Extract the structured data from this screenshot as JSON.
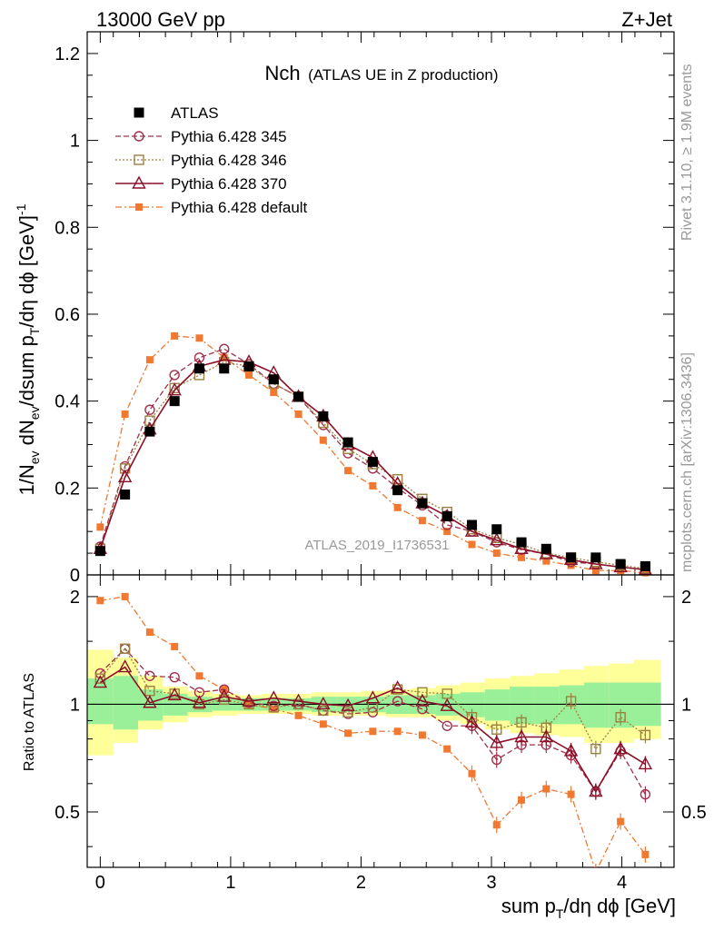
{
  "header": {
    "energy": "13000 GeV pp",
    "process": "Z+Jet"
  },
  "side_labels": {
    "rivet": "Rivet 3.1.10, ≥ 1.9M events",
    "mcplots": "mcplots.cern.ch [arXiv:1306.3436]"
  },
  "chart_data": {
    "type": "line",
    "title_main": "Nch",
    "title_sub": "(ATLAS UE in Z production)",
    "watermark": "ATLAS_2019_I1736531",
    "xlabel": "sum p_T/dη dϕ [GeV]",
    "ylabel_top": "1/N_ev dN_ev/dsum p_T/dη dϕ [GeV]^-1",
    "ylabel_ratio": "Ratio to ATLAS",
    "xlim": [
      -0.1,
      4.4
    ],
    "ylim_top": [
      0,
      1.25
    ],
    "ylim_ratio": [
      0.35,
      2.3
    ],
    "x_ticks": [
      {
        "v": 0,
        "label": "0"
      },
      {
        "v": 1,
        "label": "1"
      },
      {
        "v": 2,
        "label": "2"
      },
      {
        "v": 3,
        "label": "3"
      },
      {
        "v": 4,
        "label": "4"
      }
    ],
    "y_ticks_top": [
      {
        "v": 0,
        "label": "0"
      },
      {
        "v": 0.2,
        "label": "0.2"
      },
      {
        "v": 0.4,
        "label": "0.4"
      },
      {
        "v": 0.6,
        "label": "0.6"
      },
      {
        "v": 0.8,
        "label": "0.8"
      },
      {
        "v": 1.0,
        "label": "1"
      },
      {
        "v": 1.2,
        "label": "1.2"
      }
    ],
    "y_ticks_ratio": [
      {
        "v": 0.5,
        "label": "0.5"
      },
      {
        "v": 1,
        "label": "1"
      },
      {
        "v": 2,
        "label": "2"
      }
    ],
    "x": [
      0.0,
      0.19,
      0.38,
      0.57,
      0.76,
      0.95,
      1.14,
      1.33,
      1.52,
      1.71,
      1.9,
      2.09,
      2.28,
      2.47,
      2.66,
      2.85,
      3.04,
      3.23,
      3.42,
      3.61,
      3.8,
      3.99,
      4.18
    ],
    "bin_edges": [
      -0.1,
      0.1,
      0.29,
      0.48,
      0.67,
      0.86,
      1.05,
      1.24,
      1.43,
      1.62,
      1.81,
      2.0,
      2.19,
      2.38,
      2.57,
      2.76,
      2.95,
      3.14,
      3.33,
      3.52,
      3.71,
      3.9,
      4.09,
      4.3
    ],
    "band_inner": [
      [
        0.88,
        1.18
      ],
      [
        0.85,
        1.2
      ],
      [
        0.9,
        1.1
      ],
      [
        0.93,
        1.07
      ],
      [
        0.95,
        1.05
      ],
      [
        0.96,
        1.04
      ],
      [
        0.96,
        1.04
      ],
      [
        0.96,
        1.04
      ],
      [
        0.96,
        1.04
      ],
      [
        0.95,
        1.05
      ],
      [
        0.95,
        1.05
      ],
      [
        0.95,
        1.05
      ],
      [
        0.94,
        1.06
      ],
      [
        0.94,
        1.06
      ],
      [
        0.93,
        1.07
      ],
      [
        0.92,
        1.08
      ],
      [
        0.9,
        1.1
      ],
      [
        0.88,
        1.12
      ],
      [
        0.88,
        1.12
      ],
      [
        0.88,
        1.13
      ],
      [
        0.86,
        1.15
      ],
      [
        0.86,
        1.15
      ],
      [
        0.87,
        1.15
      ]
    ],
    "band_outer": [
      [
        0.72,
        1.42
      ],
      [
        0.78,
        1.35
      ],
      [
        0.85,
        1.2
      ],
      [
        0.89,
        1.12
      ],
      [
        0.92,
        1.09
      ],
      [
        0.93,
        1.07
      ],
      [
        0.94,
        1.06
      ],
      [
        0.94,
        1.07
      ],
      [
        0.94,
        1.07
      ],
      [
        0.93,
        1.08
      ],
      [
        0.93,
        1.08
      ],
      [
        0.93,
        1.09
      ],
      [
        0.92,
        1.1
      ],
      [
        0.92,
        1.11
      ],
      [
        0.9,
        1.13
      ],
      [
        0.88,
        1.15
      ],
      [
        0.85,
        1.18
      ],
      [
        0.83,
        1.2
      ],
      [
        0.82,
        1.22
      ],
      [
        0.81,
        1.25
      ],
      [
        0.78,
        1.28
      ],
      [
        0.78,
        1.3
      ],
      [
        0.8,
        1.33
      ]
    ],
    "series": [
      {
        "name": "ATLAS",
        "color": "#000000",
        "marker": "square-filled",
        "line": "none",
        "values": [
          0.055,
          0.185,
          0.33,
          0.4,
          0.475,
          0.475,
          0.48,
          0.45,
          0.41,
          0.365,
          0.305,
          0.26,
          0.195,
          0.165,
          0.135,
          0.115,
          0.105,
          0.075,
          0.06,
          0.04,
          0.04,
          0.025,
          0.02
        ],
        "ratio": [
          1,
          1,
          1,
          1,
          1,
          1,
          1,
          1,
          1,
          1,
          1,
          1,
          1,
          1,
          1,
          1,
          1,
          1,
          1,
          1,
          1,
          1,
          1
        ]
      },
      {
        "name": "Pythia 6.428 345",
        "color": "#a0304c",
        "marker": "circle-open",
        "line": "dashed",
        "values": [
          0.065,
          0.25,
          0.38,
          0.46,
          0.5,
          0.52,
          0.485,
          0.44,
          0.41,
          0.345,
          0.28,
          0.245,
          0.2,
          0.16,
          0.115,
          0.1,
          0.075,
          0.058,
          0.048,
          0.03,
          0.025,
          0.018,
          0.012
        ],
        "ratio": [
          1.22,
          1.43,
          1.2,
          1.19,
          1.08,
          1.1,
          1.01,
          0.99,
          1.0,
          0.96,
          0.94,
          0.95,
          1.02,
          0.97,
          0.87,
          0.87,
          0.7,
          0.77,
          0.77,
          0.72,
          0.57,
          0.74,
          0.56
        ]
      },
      {
        "name": "Pythia 6.428 346",
        "color": "#9c8040",
        "marker": "square-open",
        "line": "dotted",
        "values": [
          0.06,
          0.245,
          0.355,
          0.43,
          0.46,
          0.49,
          0.48,
          0.44,
          0.41,
          0.35,
          0.29,
          0.255,
          0.22,
          0.175,
          0.145,
          0.105,
          0.085,
          0.07,
          0.05,
          0.04,
          0.03,
          0.022,
          0.015
        ],
        "ratio": [
          1.18,
          1.43,
          1.09,
          1.07,
          1.0,
          1.03,
          1.0,
          0.98,
          1.0,
          0.96,
          0.95,
          0.98,
          1.1,
          1.08,
          1.07,
          0.92,
          0.85,
          0.89,
          0.86,
          1.02,
          0.75,
          0.92,
          0.82
        ]
      },
      {
        "name": "Pythia 6.428 370",
        "color": "#8a1028",
        "marker": "triangle-open",
        "line": "solid",
        "values": [
          0.06,
          0.225,
          0.335,
          0.425,
          0.48,
          0.495,
          0.49,
          0.465,
          0.41,
          0.365,
          0.3,
          0.27,
          0.21,
          0.165,
          0.135,
          0.1,
          0.08,
          0.06,
          0.048,
          0.035,
          0.025,
          0.018,
          0.012
        ],
        "ratio": [
          1.15,
          1.27,
          1.01,
          1.06,
          1.01,
          1.05,
          1.02,
          1.04,
          1.02,
          1.0,
          0.99,
          1.04,
          1.11,
          1.02,
          0.99,
          0.89,
          0.78,
          0.81,
          0.81,
          0.74,
          0.57,
          0.75,
          0.68
        ]
      },
      {
        "name": "Pythia 6.428 default",
        "color": "#f07830",
        "marker": "square-filled-small",
        "line": "dashdot",
        "values": [
          0.11,
          0.37,
          0.495,
          0.55,
          0.545,
          0.5,
          0.46,
          0.42,
          0.37,
          0.31,
          0.24,
          0.205,
          0.155,
          0.125,
          0.1,
          0.07,
          0.05,
          0.04,
          0.032,
          0.022,
          0.01,
          0.01,
          0.005
        ],
        "ratio": [
          1.95,
          2.0,
          1.59,
          1.45,
          1.2,
          1.1,
          1.0,
          0.97,
          0.93,
          0.88,
          0.83,
          0.84,
          0.84,
          0.82,
          0.75,
          0.64,
          0.46,
          0.54,
          0.58,
          0.56,
          0.34,
          0.47,
          0.38
        ]
      }
    ]
  }
}
